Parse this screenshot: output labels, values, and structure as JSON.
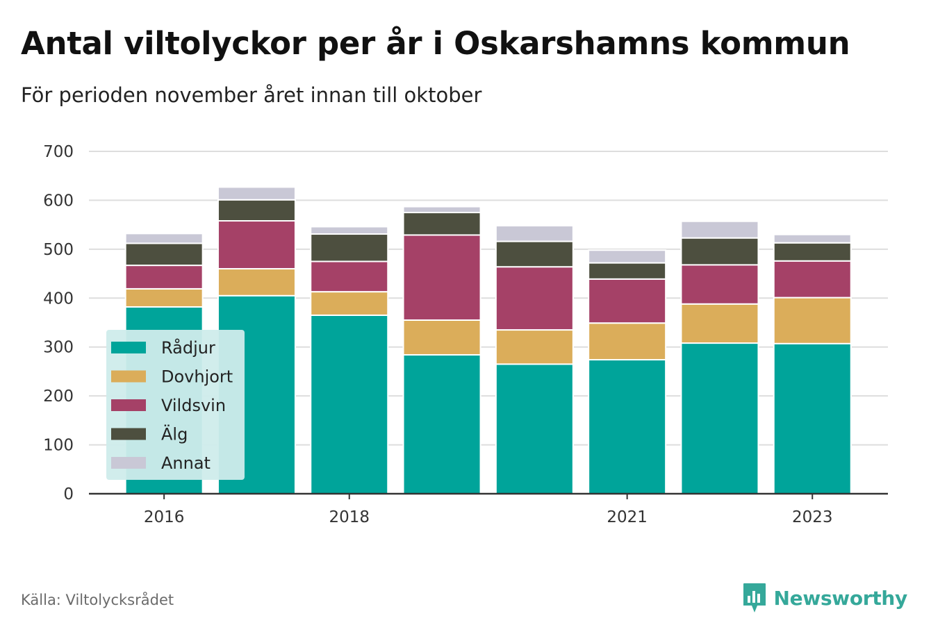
{
  "title": "Antal viltolyckor per år i Oskarshamns kommun",
  "subtitle": "För perioden november året innan till oktober",
  "source": "Källa: Viltolycksrådet",
  "brand": "Newsworthy",
  "chart_data": {
    "type": "bar",
    "stacked": true,
    "categories": [
      "2016",
      "2017",
      "2018",
      "2019",
      "2020",
      "2021",
      "2022",
      "2023"
    ],
    "x_tick_labels": [
      "2016",
      "2018",
      "2021",
      "2023"
    ],
    "ylim": [
      0,
      700
    ],
    "y_ticks": [
      0,
      100,
      200,
      300,
      400,
      500,
      600,
      700
    ],
    "grid": true,
    "legend_position": "bottom-left",
    "series": [
      {
        "name": "Rådjur",
        "color": "#00a49a",
        "values": [
          382,
          405,
          365,
          284,
          265,
          274,
          308,
          307
        ]
      },
      {
        "name": "Dovhjort",
        "color": "#dbad5a",
        "values": [
          37,
          55,
          48,
          71,
          70,
          75,
          80,
          94
        ]
      },
      {
        "name": "Vildsvin",
        "color": "#a54167",
        "values": [
          48,
          98,
          62,
          174,
          129,
          90,
          80,
          75
        ]
      },
      {
        "name": "Älg",
        "color": "#4d4f3f",
        "values": [
          45,
          43,
          56,
          46,
          52,
          33,
          55,
          37
        ]
      },
      {
        "name": "Annat",
        "color": "#c9c8d6",
        "values": [
          20,
          26,
          15,
          12,
          32,
          26,
          34,
          17
        ]
      }
    ]
  },
  "colors": {
    "legend_background": "#cfeceb",
    "grid": "#dddddd",
    "axis": "#333333"
  },
  "icons": {
    "brand_icon": "newsworthy-logo-icon"
  }
}
